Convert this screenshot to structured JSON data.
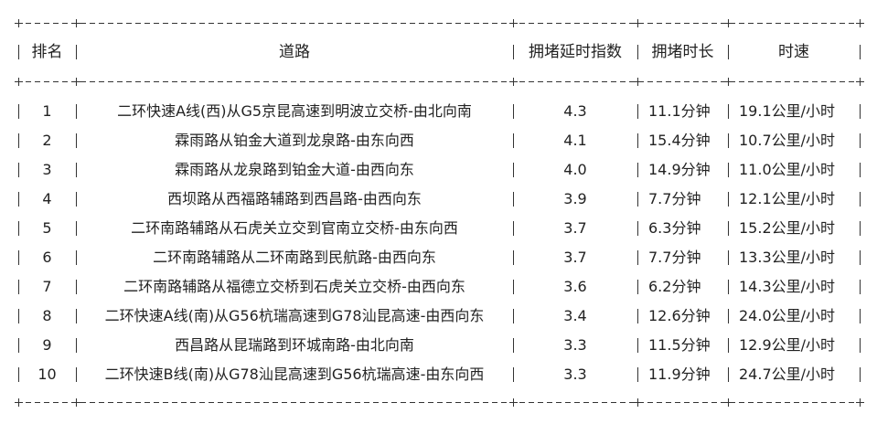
{
  "table": {
    "headers": [
      "排名",
      "道路",
      "拥堵延时指数",
      "拥堵时长",
      "时速"
    ],
    "rows": [
      [
        "1",
        "二环快速A线(西)从G5京昆高速到明波立交桥-由北向南",
        "4.3",
        "11.1分钟",
        "19.1公里/小时"
      ],
      [
        "2",
        "霖雨路从铂金大道到龙泉路-由东向西",
        "4.1",
        "15.4分钟",
        "10.7公里/小时"
      ],
      [
        "3",
        "霖雨路从龙泉路到铂金大道-由西向东",
        "4.0",
        "14.9分钟",
        "11.0公里/小时"
      ],
      [
        "4",
        "西坝路从西福路辅路到西昌路-由西向东",
        "3.9",
        "7.7分钟",
        "12.1公里/小时"
      ],
      [
        "5",
        "二环南路辅路从石虎关立交到官南立交桥-由东向西",
        "3.7",
        "6.3分钟",
        "15.2公里/小时"
      ],
      [
        "6",
        "二环南路辅路从二环南路到民航路-由西向东",
        "3.7",
        "7.7分钟",
        "13.3公里/小时"
      ],
      [
        "7",
        "二环南路辅路从福德立交桥到石虎关立交桥-由西向东",
        "3.6",
        "6.2分钟",
        "14.3公里/小时"
      ],
      [
        "8",
        "二环快速A线(南)从G56杭瑞高速到G78汕昆高速-由西向东",
        "3.4",
        "12.6分钟",
        "24.0公里/小时"
      ],
      [
        "9",
        "西昌路从昆瑞路到环城南路-由北向南",
        "3.3",
        "11.5分钟",
        "12.9公里/小时"
      ],
      [
        "10",
        "二环快速B线(南)从G78汕昆高速到G56杭瑞高速-由东向西",
        "3.3",
        "11.9分钟",
        "24.7公里/小时"
      ]
    ]
  }
}
